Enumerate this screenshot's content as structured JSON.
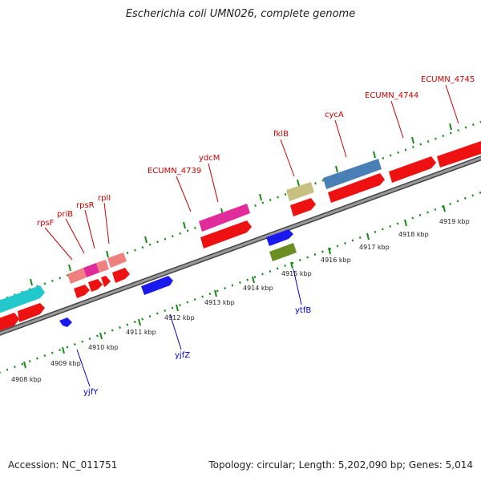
{
  "title": "Escherichia coli UMN026, complete genome",
  "footer": {
    "accession": "Accession: NC_011751",
    "summary": "Topology: circular; Length: 5,202,090 bp; Genes: 5,014"
  },
  "colors": {
    "backbone": "#888888",
    "backbone_edge": "#333333",
    "tick": "#1a8a1a",
    "plus_label": "#cc0000",
    "minus_label": "#0000cc",
    "scale_text": "#222222"
  },
  "scale": {
    "unit": "kbp",
    "labels": [
      "4908 kbp",
      "4909 kbp",
      "4910 kbp",
      "4911 kbp",
      "4912 kbp",
      "4913 kbp",
      "4914 kbp",
      "4915 kbp",
      "4916 kbp",
      "4917 kbp",
      "4918 kbp",
      "4919 kbp"
    ]
  },
  "features": [
    {
      "name": "rpsF",
      "strand": "plus"
    },
    {
      "name": "priB",
      "strand": "plus"
    },
    {
      "name": "rpsR",
      "strand": "plus"
    },
    {
      "name": "rplI",
      "strand": "plus"
    },
    {
      "name": "ECUMN_4739",
      "strand": "plus"
    },
    {
      "name": "ydcM",
      "strand": "plus"
    },
    {
      "name": "fklB",
      "strand": "plus"
    },
    {
      "name": "cycA",
      "strand": "plus"
    },
    {
      "name": "ECUMN_4744",
      "strand": "plus"
    },
    {
      "name": "ECUMN_4745",
      "strand": "plus"
    },
    {
      "name": "yjfY",
      "strand": "minus"
    },
    {
      "name": "yjfZ",
      "strand": "minus"
    },
    {
      "name": "ytfB",
      "strand": "minus"
    }
  ]
}
